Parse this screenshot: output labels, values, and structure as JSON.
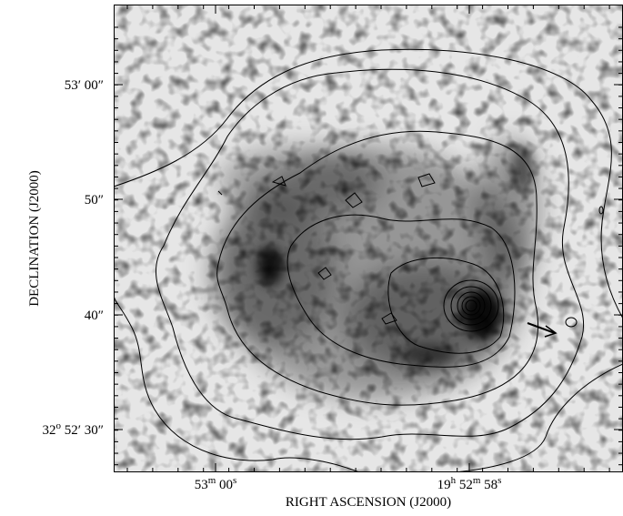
{
  "axes": {
    "x_label": "RIGHT ASCENSION (J2000)",
    "y_label": "DECLINATION (J2000)",
    "x_ticks": [
      [
        {
          "t": "53"
        },
        {
          "t": "m",
          "sup": true
        },
        {
          "t": " 00"
        },
        {
          "t": "s",
          "sup": true
        }
      ],
      [
        {
          "t": "19"
        },
        {
          "t": "h",
          "sup": true
        },
        {
          "t": " 52"
        },
        {
          "t": "m",
          "sup": true
        },
        {
          "t": " 58"
        },
        {
          "t": "s",
          "sup": true
        }
      ]
    ],
    "y_ticks": [
      [
        {
          "t": "53′ 00″"
        }
      ],
      [
        {
          "t": "50″"
        }
      ],
      [
        {
          "t": "40″"
        }
      ],
      [
        {
          "t": "32"
        },
        {
          "t": "o",
          "sup": true
        },
        {
          "t": " 52′ 30″"
        }
      ]
    ]
  }
}
